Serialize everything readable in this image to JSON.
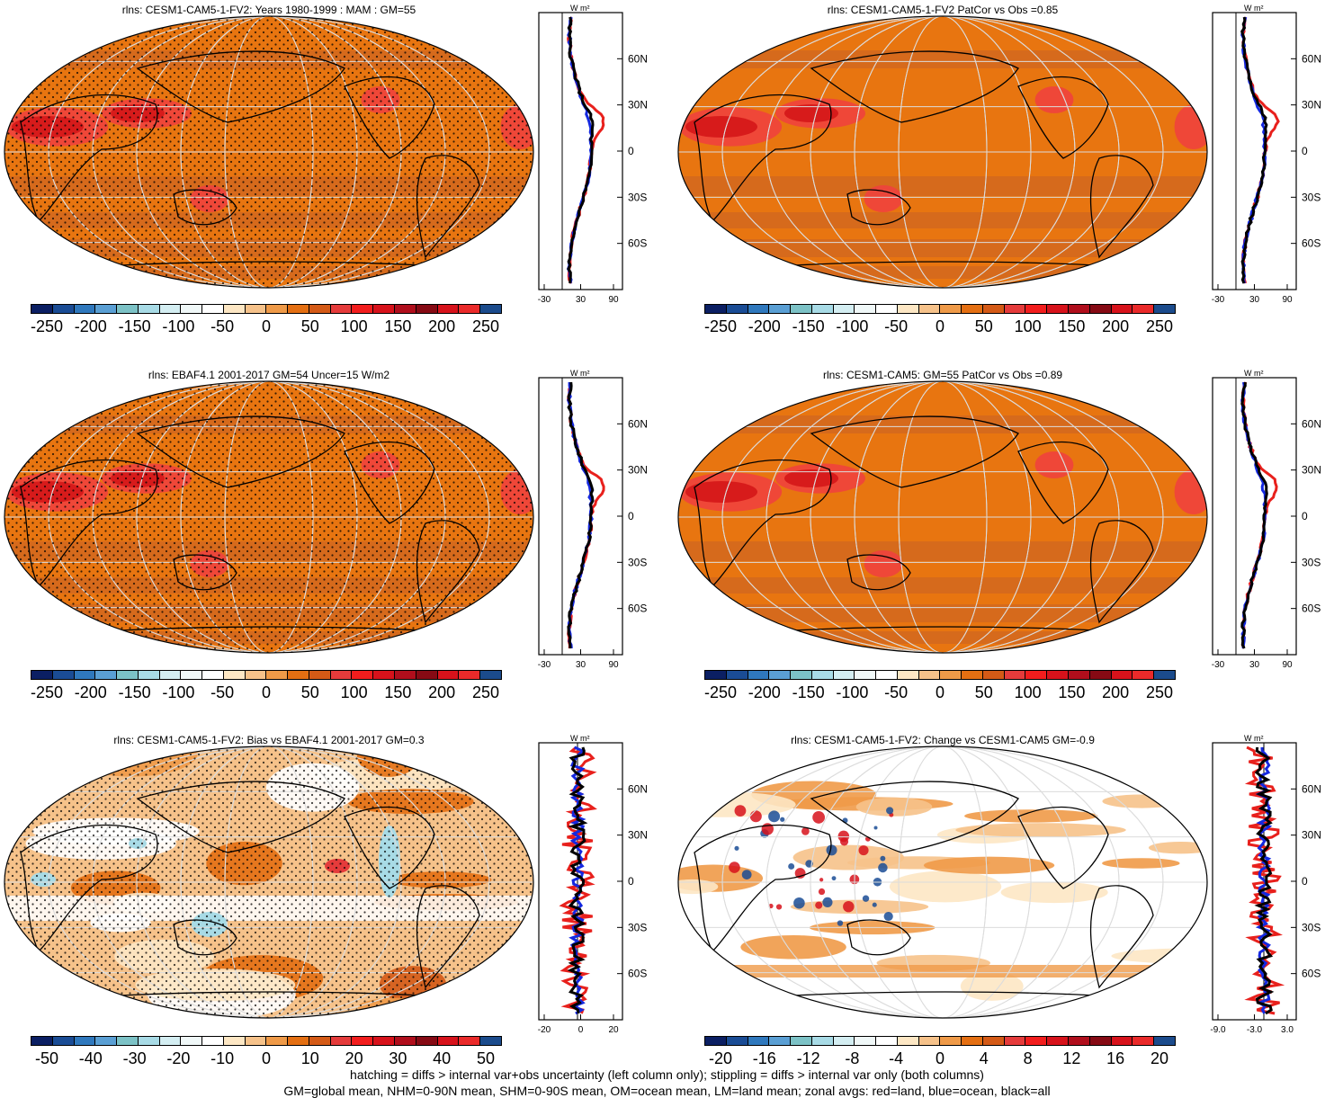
{
  "panels": [
    {
      "title": "rlns: CESM1-CAM5-1-FV2: Years 1980-1999 : MAM : GM=55",
      "cbar": "abs",
      "zonal": "abs",
      "style": "abs",
      "hatch": true
    },
    {
      "title": "rlns: CESM1-CAM5-1-FV2 PatCor vs Obs =0.85",
      "cbar": "abs",
      "zonal": "abs",
      "style": "abs2",
      "hatch": false
    },
    {
      "title": "rlns: EBAF4.1 2001-2017 GM=54 Uncer=15 W/m2",
      "cbar": "abs",
      "zonal": "abs",
      "style": "abs",
      "hatch": true
    },
    {
      "title": "rlns: CESM1-CAM5: GM=55 PatCor vs Obs =0.89",
      "cbar": "abs",
      "zonal": "abs",
      "style": "abs2",
      "hatch": false
    },
    {
      "title": "rlns: CESM1-CAM5-1-FV2: Bias vs EBAF4.1 2001-2017 GM=0.3",
      "cbar": "bias",
      "zonal": "bias",
      "style": "bias",
      "hatch": true
    },
    {
      "title": "rlns: CESM1-CAM5-1-FV2: Change vs CESM1-CAM5 GM=-0.9",
      "cbar": "chg",
      "zonal": "chg",
      "style": "chg",
      "hatch": false
    }
  ],
  "colorbars": {
    "abs": {
      "labels": [
        "-250",
        "-200",
        "-150",
        "-100",
        "-50",
        "0",
        "50",
        "100",
        "150",
        "200",
        "250"
      ]
    },
    "bias": {
      "labels": [
        "-50",
        "-40",
        "-30",
        "-20",
        "-10",
        "0",
        "10",
        "20",
        "30",
        "40",
        "50"
      ]
    },
    "chg": {
      "labels": [
        "-20",
        "-16",
        "-12",
        "-8",
        "-4",
        "0",
        "4",
        "8",
        "12",
        "16",
        "20"
      ]
    }
  },
  "palette": [
    "#0b1f63",
    "#1a4c95",
    "#2f78bd",
    "#5a9fd4",
    "#7cc2c6",
    "#a8dbe6",
    "#d4eef2",
    "#f0f8f8",
    "#ffffff",
    "#fde7c4",
    "#f6c28a",
    "#ef9a48",
    "#e46f12",
    "#d45a16",
    "#e53b3b",
    "#f21d1d",
    "#d7121b",
    "#b00e1c",
    "#860a14",
    "#d7121b",
    "#ea2a2a",
    "#1b4b8c"
  ],
  "zonal_axes": {
    "unit": "W m²",
    "lat_labels": [
      "60N",
      "30N",
      "0",
      "30S",
      "60S"
    ],
    "abs_ticks": [
      "-30",
      "30",
      "90"
    ],
    "bias_ticks": [
      "-20",
      "0",
      "20"
    ],
    "chg_ticks": [
      "-9.0",
      "-3.0",
      "3.0"
    ]
  },
  "colors": {
    "land": "#e8201c",
    "ocean": "#1428e0",
    "all": "#000000",
    "abs_base": "#e87510",
    "abs_dark": "#d2691e",
    "hot": "#f04040"
  },
  "footer": {
    "line1": "hatching = diffs > internal var+obs uncertainty (left column only); stippling = diffs > internal var only (both columns)",
    "line2": "GM=global mean, NHM=0-90N mean, SHM=0-90S mean, OM=ocean mean, LM=land mean; zonal avgs: red=land, blue=ocean, black=all"
  }
}
